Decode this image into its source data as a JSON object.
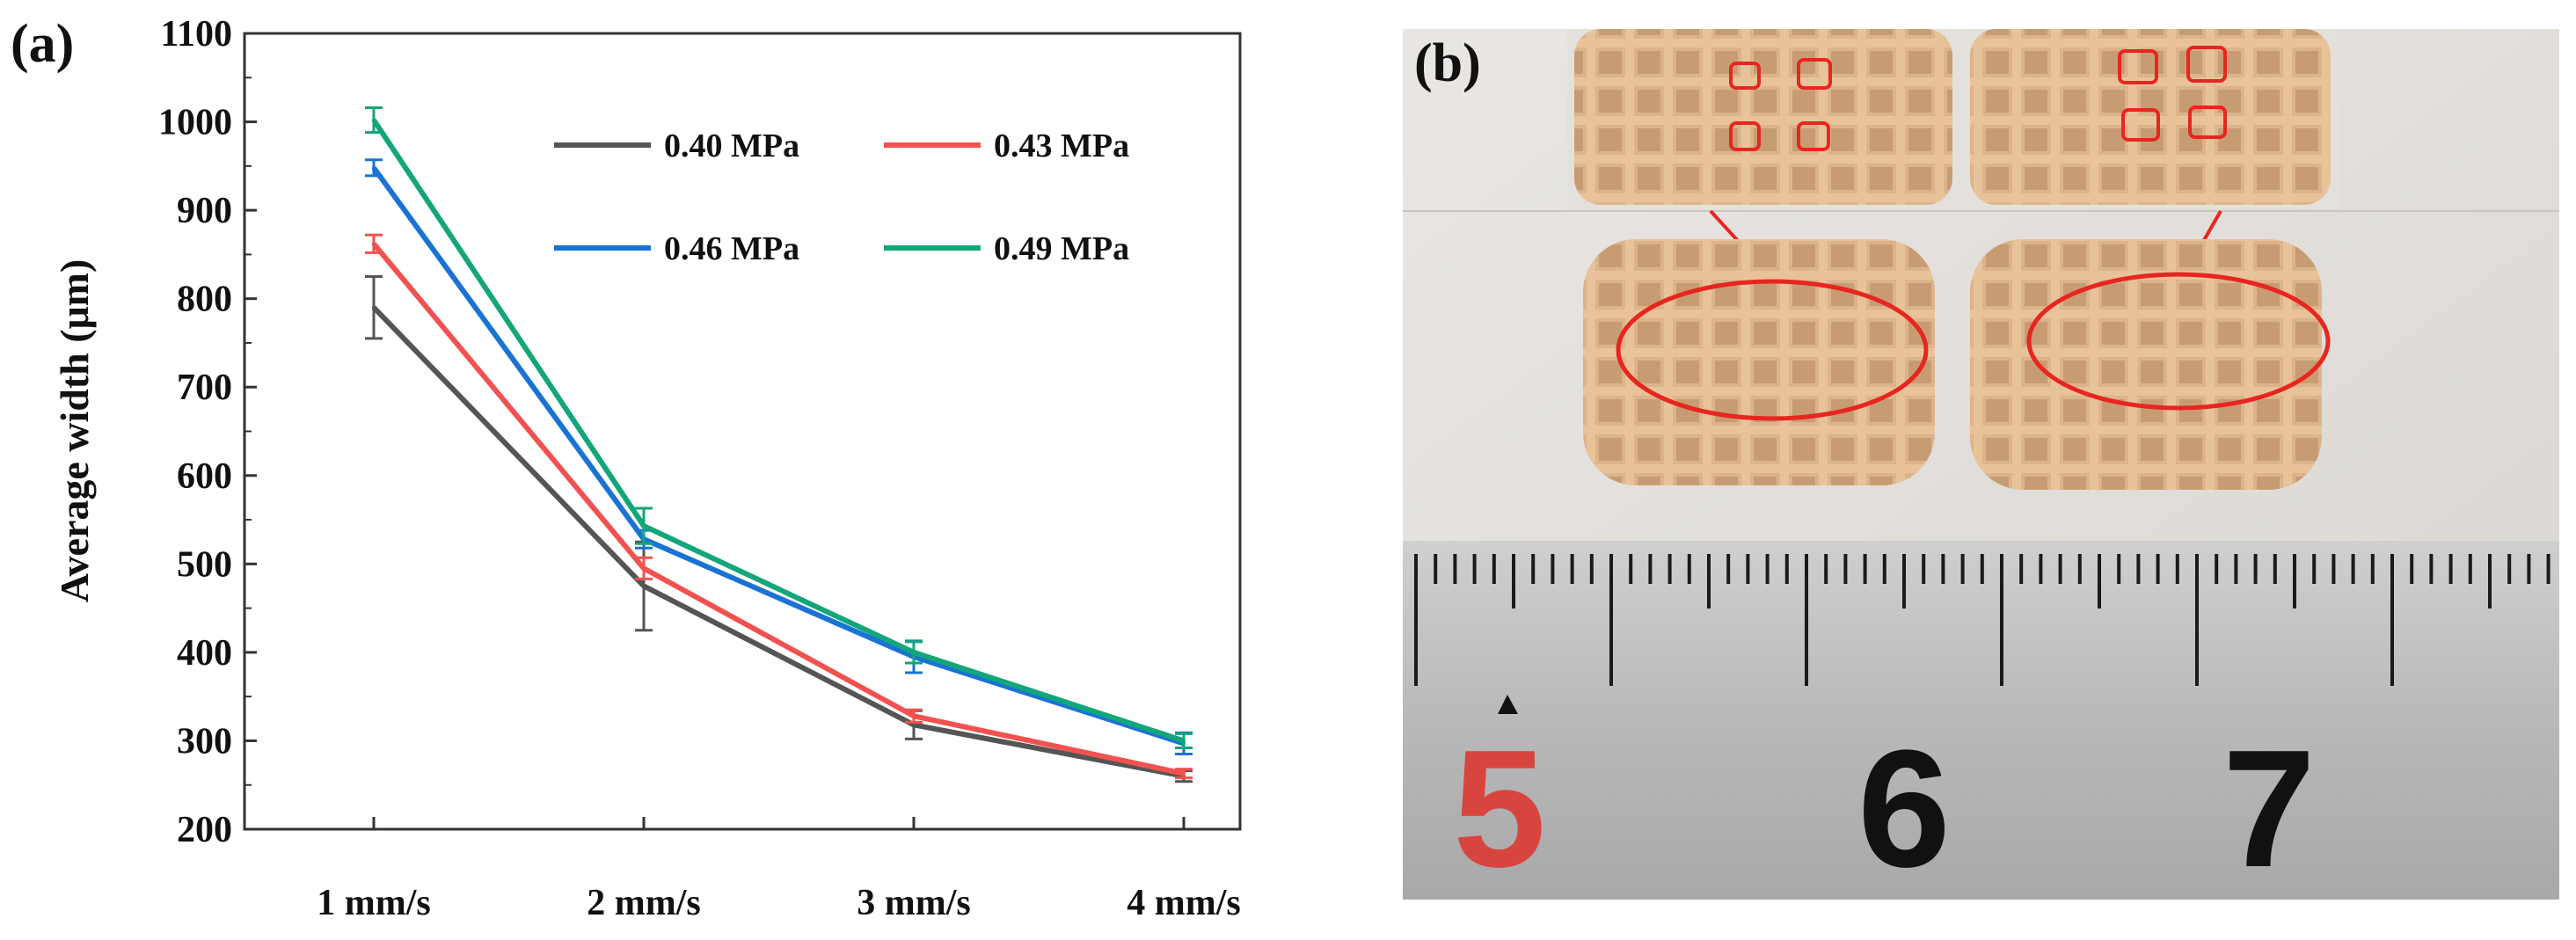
{
  "panel_a_label": "(a)",
  "panel_b_label": "(b)",
  "chart_data": {
    "type": "line",
    "title": "",
    "xlabel": "",
    "ylabel": "Average width (μm)",
    "categories": [
      "1 mm/s",
      "2 mm/s",
      "3 mm/s",
      "4 mm/s"
    ],
    "ylim": [
      200,
      1100
    ],
    "yticks": [
      200,
      300,
      400,
      500,
      600,
      700,
      800,
      900,
      1000,
      1100
    ],
    "legend_position": "top-right",
    "series": [
      {
        "name": "0.40 MPa",
        "color": "#555555",
        "values": [
          790,
          475,
          318,
          260
        ],
        "errors": [
          35,
          50,
          16,
          6
        ]
      },
      {
        "name": "0.43 MPa",
        "color": "#f2524f",
        "values": [
          862,
          495,
          328,
          263
        ],
        "errors": [
          10,
          12,
          7,
          5
        ]
      },
      {
        "name": "0.46 MPa",
        "color": "#1a73d4",
        "values": [
          948,
          528,
          395,
          297
        ],
        "errors": [
          9,
          10,
          18,
          12
        ]
      },
      {
        "name": "0.49 MPa",
        "color": "#12a67a",
        "values": [
          1002,
          543,
          400,
          300
        ],
        "errors": [
          14,
          20,
          12,
          8
        ]
      }
    ]
  },
  "photo": {
    "ruler_numbers": [
      {
        "text": "5",
        "color": "#d8453f"
      },
      {
        "text": "6",
        "color": "#111111"
      },
      {
        "text": "7",
        "color": "#111111"
      }
    ]
  }
}
